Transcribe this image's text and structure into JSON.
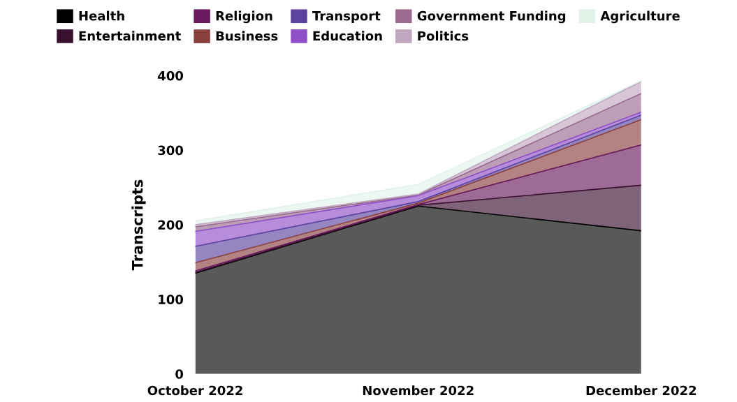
{
  "chart_data": {
    "type": "area",
    "stacked": true,
    "ylabel": "Transcripts",
    "categories": [
      "October 2022",
      "November 2022",
      "December 2022"
    ],
    "ylim": [
      0,
      400
    ],
    "yticks": [
      0,
      100,
      200,
      300,
      400
    ],
    "grid": false,
    "legend": "top",
    "series": [
      {
        "name": "Health",
        "color": "#000000",
        "values": [
          135,
          225,
          192
        ]
      },
      {
        "name": "Entertainment",
        "color": "#3a1030",
        "values": [
          1,
          1,
          61
        ]
      },
      {
        "name": "Religion",
        "color": "#6a1b5e",
        "values": [
          2,
          1,
          54
        ]
      },
      {
        "name": "Business",
        "color": "#8b4040",
        "values": [
          11,
          2,
          34
        ]
      },
      {
        "name": "Transport",
        "color": "#5c44a0",
        "values": [
          22,
          2,
          6
        ]
      },
      {
        "name": "Education",
        "color": "#9050c8",
        "values": [
          20,
          8,
          4
        ]
      },
      {
        "name": "Government Funding",
        "color": "#9a6a90",
        "values": [
          6,
          1,
          25
        ]
      },
      {
        "name": "Politics",
        "color": "#c0a8c0",
        "values": [
          3,
          1,
          16
        ]
      },
      {
        "name": "Agriculture",
        "color": "#e0f2e8",
        "values": [
          5,
          13,
          1
        ]
      }
    ]
  }
}
